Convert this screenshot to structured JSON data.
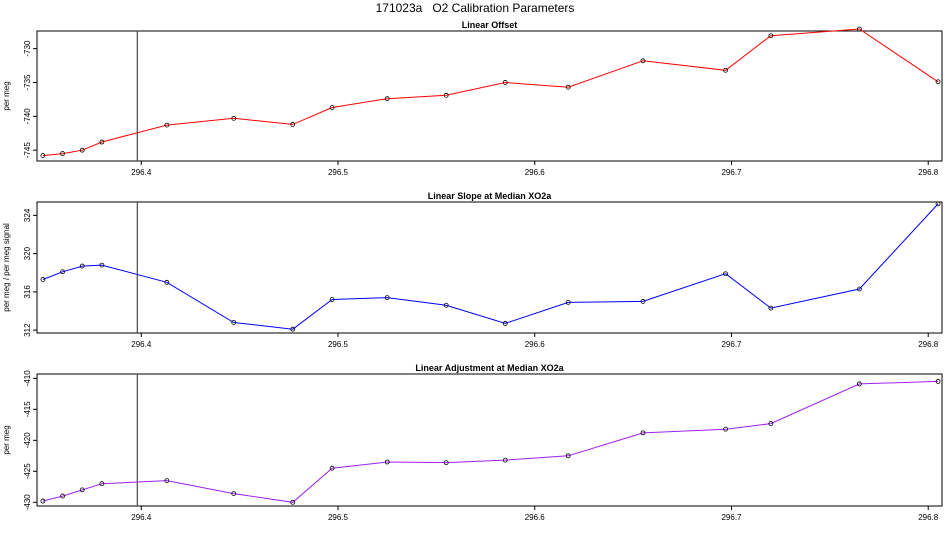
{
  "title": "171023a   O2 Calibration Parameters",
  "chart_data": [
    {
      "type": "line",
      "title": "Linear Offset",
      "xlabel": "",
      "ylabel": "per meg",
      "color": "#ff0000",
      "x_ticks": [
        "296.4",
        "296.5",
        "296.6",
        "296.7",
        "296.8"
      ],
      "y_ticks": [
        "-745",
        "-740",
        "-735",
        "-730"
      ],
      "xlim": [
        296.347,
        296.807
      ],
      "ylim": [
        -746.6,
        -727.4
      ],
      "vline_x": 296.398,
      "x": [
        296.35,
        296.36,
        296.37,
        296.38,
        296.413,
        296.447,
        296.477,
        296.497,
        296.525,
        296.555,
        296.585,
        296.617,
        296.655,
        296.697,
        296.72,
        296.765,
        296.805
      ],
      "y": [
        -745.8,
        -745.5,
        -745.0,
        -743.8,
        -741.3,
        -740.3,
        -741.2,
        -738.7,
        -737.4,
        -736.9,
        -735.0,
        -735.7,
        -731.8,
        -733.2,
        -728.1,
        -727.1,
        -734.9
      ]
    },
    {
      "type": "line",
      "title": "Linear Slope at Median XO2a",
      "xlabel": "",
      "ylabel": "per meg / per meg signal",
      "color": "#0000ff",
      "x_ticks": [
        "296.4",
        "296.5",
        "296.6",
        "296.7",
        "296.8"
      ],
      "y_ticks": [
        "312",
        "316",
        "320",
        "324"
      ],
      "xlim": [
        296.347,
        296.807
      ],
      "ylim": [
        311.7,
        325.4
      ],
      "vline_x": 296.398,
      "x": [
        296.35,
        296.36,
        296.37,
        296.38,
        296.413,
        296.447,
        296.477,
        296.497,
        296.525,
        296.555,
        296.585,
        296.617,
        296.655,
        296.697,
        296.72,
        296.765,
        296.805
      ],
      "y": [
        317.3,
        318.1,
        318.7,
        318.8,
        317.0,
        312.8,
        312.1,
        315.2,
        315.4,
        314.6,
        312.7,
        314.9,
        315.0,
        317.9,
        314.3,
        316.3,
        325.2
      ]
    },
    {
      "type": "line",
      "title": "Linear Adjustment at Median XO2a",
      "xlabel": "",
      "ylabel": "per meg",
      "color": "#a020f0",
      "x_ticks": [
        "296.4",
        "296.5",
        "296.6",
        "296.7",
        "296.8"
      ],
      "y_ticks": [
        "-430",
        "-425",
        "-420",
        "-415",
        "-410"
      ],
      "xlim": [
        296.347,
        296.807
      ],
      "ylim": [
        -430.6,
        -409.3
      ],
      "vline_x": 296.398,
      "x": [
        296.35,
        296.36,
        296.37,
        296.38,
        296.413,
        296.447,
        296.477,
        296.497,
        296.525,
        296.555,
        296.585,
        296.617,
        296.655,
        296.697,
        296.72,
        296.765,
        296.805
      ],
      "y": [
        -429.8,
        -429.0,
        -428.0,
        -427.0,
        -426.5,
        -428.6,
        -430.0,
        -424.5,
        -423.5,
        -423.6,
        -423.2,
        -422.5,
        -418.8,
        -418.2,
        -417.3,
        -410.9,
        -410.5
      ]
    }
  ]
}
